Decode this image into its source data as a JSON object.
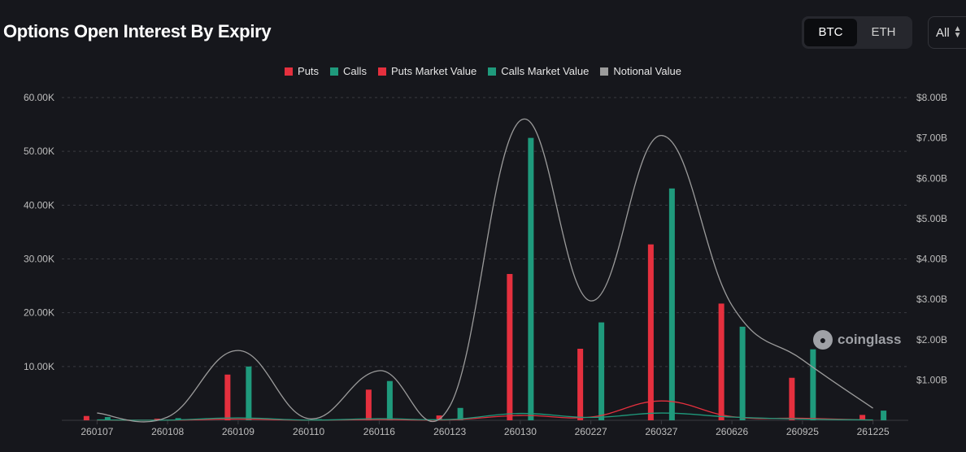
{
  "page": {
    "title": "Options Open Interest By Expiry",
    "assets": [
      {
        "label": "BTC",
        "active": true
      },
      {
        "label": "ETH",
        "active": false
      }
    ],
    "range_value": "All",
    "watermark": "coinglass"
  },
  "colors": {
    "puts": "#e5303e",
    "calls": "#1f9a7c",
    "puts_market_value": "#e5303e",
    "calls_market_value": "#1f9a7c",
    "notional_value": "#9b9b9b",
    "grid": "#3a3b40"
  },
  "chart_data": {
    "type": "bar",
    "title": "Options Open Interest By Expiry",
    "categories": [
      "260107",
      "260108",
      "260109",
      "260110",
      "260116",
      "260123",
      "260130",
      "260227",
      "260327",
      "260626",
      "260925",
      "261225"
    ],
    "left_axis": {
      "min": 0,
      "max": 60000,
      "ticks": [
        "60.00K",
        "50.00K",
        "40.00K",
        "30.00K",
        "20.00K",
        "10.00K"
      ],
      "tick_values": [
        60000,
        50000,
        40000,
        30000,
        20000,
        10000
      ]
    },
    "right_axis": {
      "min": 0,
      "max": 8000000000,
      "ticks": [
        "$8.00B",
        "$7.00B",
        "$6.00B",
        "$5.00B",
        "$4.00B",
        "$3.00B",
        "$2.00B",
        "$1.00B"
      ],
      "tick_values": [
        8000000000,
        7000000000,
        6000000000,
        5000000000,
        4000000000,
        3000000000,
        2000000000,
        1000000000
      ]
    },
    "legend": [
      "Puts",
      "Calls",
      "Puts Market Value",
      "Calls Market Value",
      "Notional Value"
    ],
    "series": [
      {
        "name": "Puts",
        "kind": "bar",
        "axis": "left",
        "values": [
          800,
          300,
          8500,
          150,
          5700,
          900,
          27200,
          13300,
          32700,
          21700,
          7900,
          1000
        ]
      },
      {
        "name": "Calls",
        "kind": "bar",
        "axis": "left",
        "values": [
          600,
          400,
          10000,
          200,
          7300,
          2300,
          52500,
          18200,
          43100,
          17400,
          13200,
          1800
        ]
      },
      {
        "name": "Puts Market Value",
        "kind": "line",
        "axis": "right",
        "values": [
          5000000,
          3000000,
          30000000,
          3000000,
          20000000,
          10000000,
          120000000,
          80000000,
          480000000,
          90000000,
          50000000,
          5000000
        ]
      },
      {
        "name": "Calls Market Value",
        "kind": "line",
        "axis": "right",
        "values": [
          10000000,
          5000000,
          60000000,
          5000000,
          40000000,
          20000000,
          170000000,
          70000000,
          180000000,
          80000000,
          30000000,
          10000000
        ]
      },
      {
        "name": "Notional Value",
        "kind": "line",
        "axis": "right",
        "values": [
          180000000,
          80000000,
          1730000000,
          40000000,
          1230000000,
          350000000,
          7430000000,
          2960000000,
          7060000000,
          2850000000,
          1500000000,
          300000000
        ]
      }
    ]
  }
}
